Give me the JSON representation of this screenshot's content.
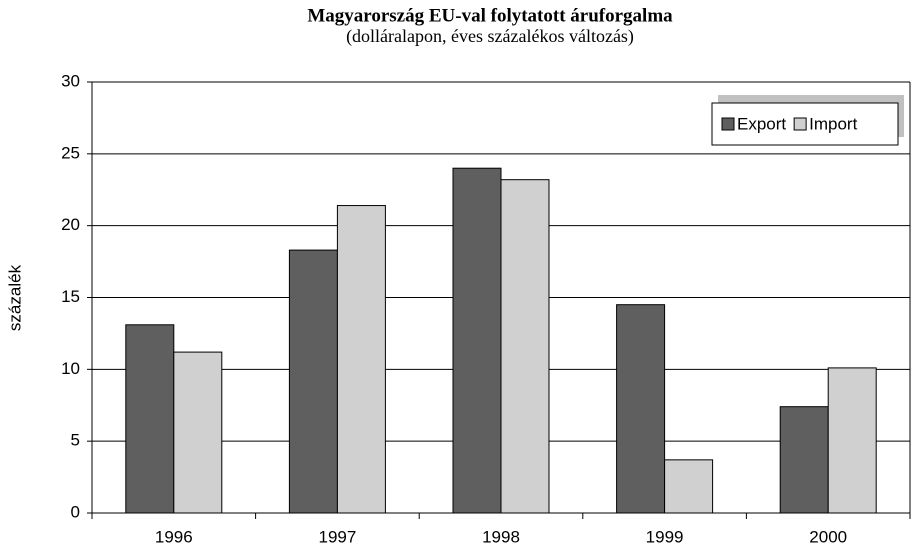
{
  "chart_data": {
    "type": "bar",
    "title": "Magyarország EU-val folytatott áruforgalma",
    "subtitle": "(dolláralapon, éves százalékos változás)",
    "y_label": "százalék",
    "categories": [
      "1996",
      "1997",
      "1998",
      "1999",
      "2000"
    ],
    "series": [
      {
        "name": "Export",
        "color": "#5f5f5f",
        "values": [
          13.1,
          18.3,
          24.0,
          14.5,
          7.4
        ]
      },
      {
        "name": "Import",
        "color": "#d0d0d0",
        "values": [
          11.2,
          21.4,
          23.2,
          3.7,
          10.1
        ]
      }
    ],
    "ylim": [
      0,
      30
    ],
    "yticks": [
      0,
      5,
      10,
      15,
      20,
      25,
      30
    ],
    "grid": true,
    "legend": "top-right"
  }
}
